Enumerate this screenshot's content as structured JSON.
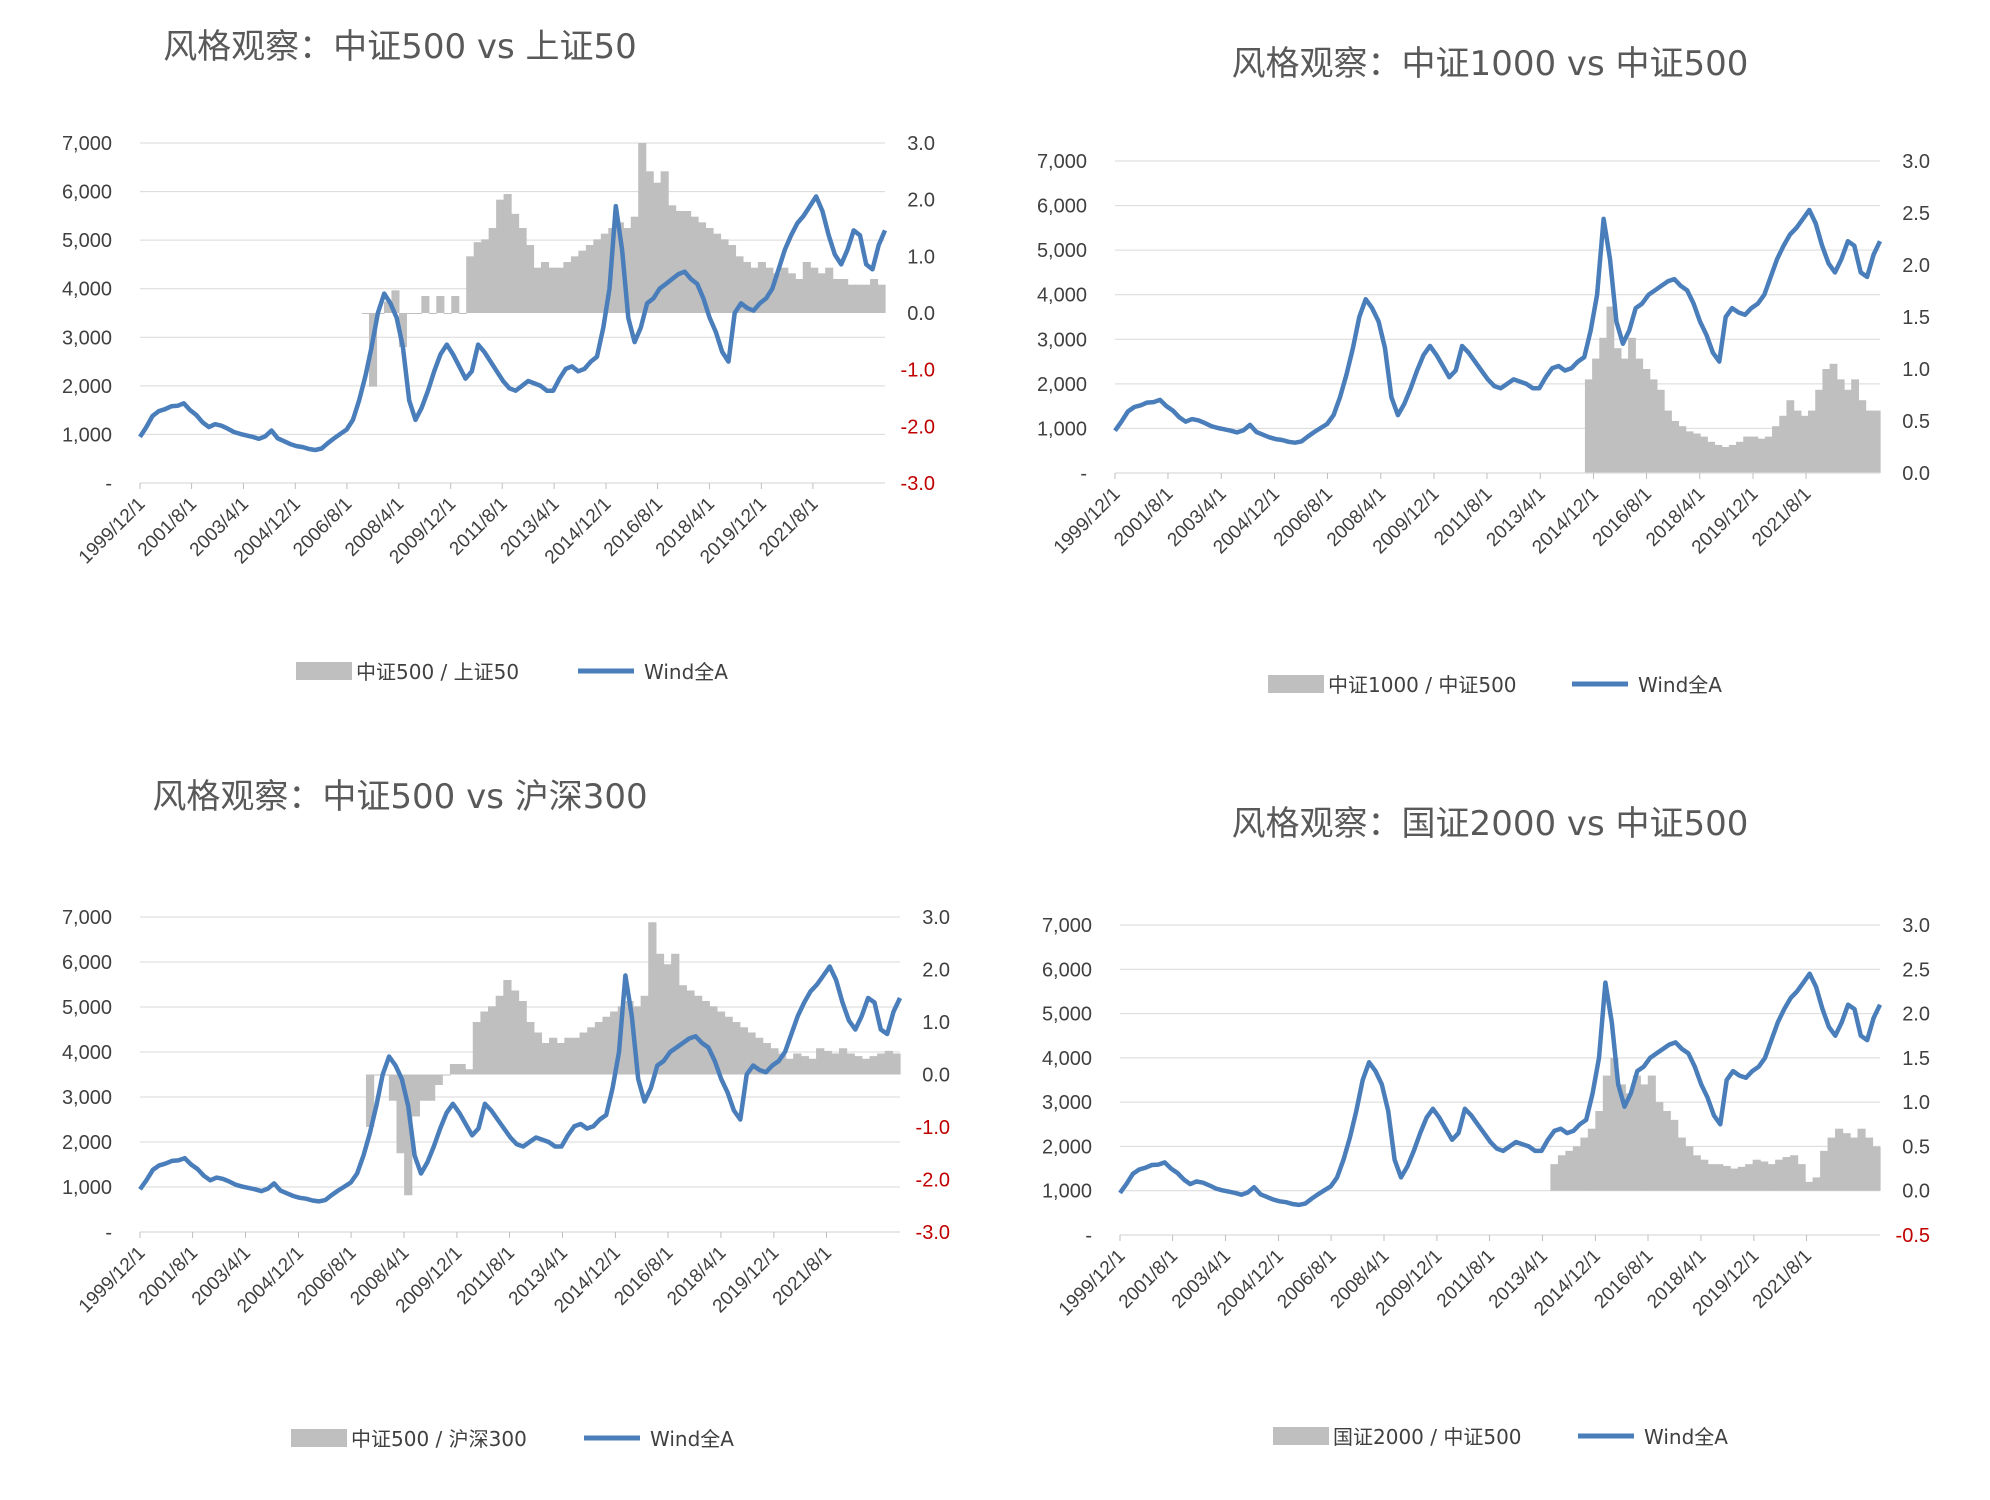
{
  "colors": {
    "line": "#4a7ebb",
    "bar": "#bfbfbf",
    "grid": "#d9d9d9",
    "negative_tick": "#c00000",
    "text": "#404040"
  },
  "chart_data": [
    {
      "type": "bar+line",
      "title": "风格观察：中证500 vs 上证50",
      "x_tick_labels": [
        "1999/12/1",
        "2001/8/1",
        "2003/4/1",
        "2004/12/1",
        "2006/8/1",
        "2008/4/1",
        "2009/12/1",
        "2011/8/1",
        "2013/4/1",
        "2014/12/1",
        "2016/8/1",
        "2018/4/1",
        "2019/12/1",
        "2021/8/1"
      ],
      "y_left": {
        "ticks": [
          "7,000",
          "6,000",
          "5,000",
          "4,000",
          "3,000",
          "2,000",
          "1,000",
          "-"
        ],
        "range": [
          0,
          7000
        ]
      },
      "y_right": {
        "ticks": [
          "3.0",
          "2.0",
          "1.0",
          "0.0",
          "-1.0",
          "-2.0",
          "-3.0"
        ],
        "range": [
          -3,
          3
        ],
        "negative_red": true
      },
      "legend": {
        "bar": "中证500 / 上证50",
        "line": "Wind全A"
      },
      "bar_series": {
        "name": "中证500 / 上证50",
        "start": 2007.05,
        "end": 2023.9,
        "values": [
          0.0,
          -1.3,
          0.0,
          0.2,
          0.4,
          -0.6,
          0.0,
          0.0,
          0.3,
          0.0,
          0.3,
          0.0,
          0.3,
          0.0,
          1.0,
          1.25,
          1.3,
          1.5,
          2.0,
          2.1,
          1.75,
          1.5,
          1.2,
          0.8,
          0.9,
          0.8,
          0.8,
          0.9,
          1.0,
          1.1,
          1.2,
          1.3,
          1.4,
          1.5,
          1.6,
          1.5,
          1.7,
          3.0,
          2.5,
          2.3,
          2.5,
          1.9,
          1.8,
          1.8,
          1.7,
          1.6,
          1.5,
          1.4,
          1.3,
          1.2,
          1.0,
          0.9,
          0.8,
          0.9,
          0.8,
          0.7,
          0.8,
          0.7,
          0.6,
          0.9,
          0.8,
          0.7,
          0.8,
          0.6,
          0.6,
          0.5,
          0.5,
          0.5,
          0.6,
          0.5
        ]
      },
      "line_series": {
        "name": "Wind全A",
        "start": 1999.92,
        "end": 2023.9,
        "values": [
          950,
          1150,
          1380,
          1480,
          1520,
          1580,
          1590,
          1640,
          1500,
          1400,
          1250,
          1150,
          1210,
          1180,
          1120,
          1050,
          1010,
          980,
          950,
          910,
          960,
          1080,
          920,
          860,
          800,
          760,
          740,
          700,
          680,
          710,
          820,
          920,
          1010,
          1100,
          1300,
          1700,
          2200,
          2800,
          3500,
          3900,
          3700,
          3400,
          2800,
          1700,
          1300,
          1550,
          1900,
          2300,
          2650,
          2850,
          2650,
          2400,
          2150,
          2300,
          2850,
          2700,
          2500,
          2300,
          2100,
          1950,
          1900,
          2000,
          2100,
          2050,
          2000,
          1900,
          1900,
          2150,
          2350,
          2400,
          2300,
          2350,
          2500,
          2600,
          3200,
          4000,
          5700,
          4800,
          3400,
          2900,
          3200,
          3700,
          3800,
          4000,
          4100,
          4200,
          4300,
          4350,
          4200,
          4100,
          3800,
          3400,
          3100,
          2700,
          2500,
          3500,
          3700,
          3600,
          3550,
          3700,
          3800,
          4000,
          4400,
          4800,
          5100,
          5350,
          5500,
          5700,
          5900,
          5600,
          5100,
          4700,
          4500,
          4800,
          5200,
          5100,
          4500,
          4400,
          4900,
          5200
        ]
      }
    },
    {
      "type": "bar+line",
      "title": "风格观察：中证1000 vs 中证500",
      "x_tick_labels": [
        "1999/12/1",
        "2001/8/1",
        "2003/4/1",
        "2004/12/1",
        "2006/8/1",
        "2008/4/1",
        "2009/12/1",
        "2011/8/1",
        "2013/4/1",
        "2014/12/1",
        "2016/8/1",
        "2018/4/1",
        "2019/12/1",
        "2021/8/1"
      ],
      "y_left": {
        "ticks": [
          "7,000",
          "6,000",
          "5,000",
          "4,000",
          "3,000",
          "2,000",
          "1,000",
          "-"
        ],
        "range": [
          0,
          7000
        ]
      },
      "y_right": {
        "ticks": [
          "3.0",
          "2.5",
          "2.0",
          "1.5",
          "1.0",
          "0.5",
          "0.0"
        ],
        "range": [
          0,
          3
        ],
        "negative_red": false
      },
      "legend": {
        "bar": "中证1000 / 中证500",
        "line": "Wind全A"
      },
      "bar_series": {
        "name": "中证1000 / 中证500",
        "start": 2014.65,
        "end": 2023.9,
        "values": [
          0.9,
          1.1,
          1.3,
          1.6,
          1.2,
          1.1,
          1.3,
          1.1,
          1.0,
          0.9,
          0.8,
          0.6,
          0.5,
          0.45,
          0.4,
          0.38,
          0.35,
          0.3,
          0.27,
          0.25,
          0.27,
          0.3,
          0.35,
          0.35,
          0.33,
          0.35,
          0.45,
          0.55,
          0.7,
          0.6,
          0.55,
          0.6,
          0.8,
          1.0,
          1.05,
          0.9,
          0.8,
          0.9,
          0.7,
          0.6,
          0.6
        ]
      },
      "line_series": {
        "name": "Wind全A",
        "start": 1999.92,
        "end": 2023.9,
        "values": [
          950,
          1150,
          1380,
          1480,
          1520,
          1580,
          1590,
          1640,
          1500,
          1400,
          1250,
          1150,
          1210,
          1180,
          1120,
          1050,
          1010,
          980,
          950,
          910,
          960,
          1080,
          920,
          860,
          800,
          760,
          740,
          700,
          680,
          710,
          820,
          920,
          1010,
          1100,
          1300,
          1700,
          2200,
          2800,
          3500,
          3900,
          3700,
          3400,
          2800,
          1700,
          1300,
          1550,
          1900,
          2300,
          2650,
          2850,
          2650,
          2400,
          2150,
          2300,
          2850,
          2700,
          2500,
          2300,
          2100,
          1950,
          1900,
          2000,
          2100,
          2050,
          2000,
          1900,
          1900,
          2150,
          2350,
          2400,
          2300,
          2350,
          2500,
          2600,
          3200,
          4000,
          5700,
          4800,
          3400,
          2900,
          3200,
          3700,
          3800,
          4000,
          4100,
          4200,
          4300,
          4350,
          4200,
          4100,
          3800,
          3400,
          3100,
          2700,
          2500,
          3500,
          3700,
          3600,
          3550,
          3700,
          3800,
          4000,
          4400,
          4800,
          5100,
          5350,
          5500,
          5700,
          5900,
          5600,
          5100,
          4700,
          4500,
          4800,
          5200,
          5100,
          4500,
          4400,
          4900,
          5200
        ]
      }
    },
    {
      "type": "bar+line",
      "title": "风格观察：中证500 vs 沪深300",
      "x_tick_labels": [
        "1999/12/1",
        "2001/8/1",
        "2003/4/1",
        "2004/12/1",
        "2006/8/1",
        "2008/4/1",
        "2009/12/1",
        "2011/8/1",
        "2013/4/1",
        "2014/12/1",
        "2016/8/1",
        "2018/4/1",
        "2019/12/1",
        "2021/8/1"
      ],
      "y_left": {
        "ticks": [
          "7,000",
          "6,000",
          "5,000",
          "4,000",
          "3,000",
          "2,000",
          "1,000",
          "-"
        ],
        "range": [
          0,
          7000
        ]
      },
      "y_right": {
        "ticks": [
          "3.0",
          "2.0",
          "1.0",
          "0.0",
          "-1.0",
          "-2.0",
          "-3.0"
        ],
        "range": [
          -3,
          3
        ],
        "negative_red": true
      },
      "legend": {
        "bar": "中证500 / 沪深300",
        "line": "Wind全A"
      },
      "bar_series": {
        "name": "中证500 / 沪深300",
        "start": 2007.05,
        "end": 2023.9,
        "values": [
          -1.0,
          0.0,
          0.0,
          -0.5,
          -1.5,
          -2.3,
          -0.8,
          -0.5,
          -0.5,
          -0.2,
          0.0,
          0.2,
          0.2,
          0.1,
          1.0,
          1.2,
          1.3,
          1.5,
          1.8,
          1.6,
          1.4,
          1.0,
          0.8,
          0.6,
          0.7,
          0.6,
          0.7,
          0.7,
          0.8,
          0.9,
          1.0,
          1.1,
          1.2,
          1.3,
          1.4,
          1.3,
          1.5,
          2.9,
          2.3,
          2.1,
          2.3,
          1.7,
          1.6,
          1.5,
          1.4,
          1.3,
          1.2,
          1.1,
          1.0,
          0.9,
          0.8,
          0.7,
          0.6,
          0.5,
          0.4,
          0.3,
          0.4,
          0.35,
          0.3,
          0.5,
          0.45,
          0.4,
          0.5,
          0.4,
          0.35,
          0.3,
          0.35,
          0.4,
          0.45,
          0.4
        ]
      },
      "line_series": {
        "name": "Wind全A",
        "start": 1999.92,
        "end": 2023.9,
        "values": [
          950,
          1150,
          1380,
          1480,
          1520,
          1580,
          1590,
          1640,
          1500,
          1400,
          1250,
          1150,
          1210,
          1180,
          1120,
          1050,
          1010,
          980,
          950,
          910,
          960,
          1080,
          920,
          860,
          800,
          760,
          740,
          700,
          680,
          710,
          820,
          920,
          1010,
          1100,
          1300,
          1700,
          2200,
          2800,
          3500,
          3900,
          3700,
          3400,
          2800,
          1700,
          1300,
          1550,
          1900,
          2300,
          2650,
          2850,
          2650,
          2400,
          2150,
          2300,
          2850,
          2700,
          2500,
          2300,
          2100,
          1950,
          1900,
          2000,
          2100,
          2050,
          2000,
          1900,
          1900,
          2150,
          2350,
          2400,
          2300,
          2350,
          2500,
          2600,
          3200,
          4000,
          5700,
          4800,
          3400,
          2900,
          3200,
          3700,
          3800,
          4000,
          4100,
          4200,
          4300,
          4350,
          4200,
          4100,
          3800,
          3400,
          3100,
          2700,
          2500,
          3500,
          3700,
          3600,
          3550,
          3700,
          3800,
          4000,
          4400,
          4800,
          5100,
          5350,
          5500,
          5700,
          5900,
          5600,
          5100,
          4700,
          4500,
          4800,
          5200,
          5100,
          4500,
          4400,
          4900,
          5200
        ]
      }
    },
    {
      "type": "bar+line",
      "title": "风格观察：国证2000 vs 中证500",
      "x_tick_labels": [
        "1999/12/1",
        "2001/8/1",
        "2003/4/1",
        "2004/12/1",
        "2006/8/1",
        "2008/4/1",
        "2009/12/1",
        "2011/8/1",
        "2013/4/1",
        "2014/12/1",
        "2016/8/1",
        "2018/4/1",
        "2019/12/1",
        "2021/8/1"
      ],
      "y_left": {
        "ticks": [
          "7,000",
          "6,000",
          "5,000",
          "4,000",
          "3,000",
          "2,000",
          "1,000",
          "-"
        ],
        "range": [
          0,
          7000
        ]
      },
      "y_right": {
        "ticks": [
          "3.0",
          "2.5",
          "2.0",
          "1.5",
          "1.0",
          "0.5",
          "0.0",
          "-0.5"
        ],
        "range": [
          -0.5,
          3
        ],
        "negative_red": true
      },
      "legend": {
        "bar": "国证2000 / 中证500",
        "line": "Wind全A"
      },
      "bar_series": {
        "name": "国证2000 / 中证500",
        "start": 2013.5,
        "end": 2023.9,
        "values": [
          0.3,
          0.4,
          0.45,
          0.5,
          0.6,
          0.7,
          0.9,
          1.3,
          1.5,
          1.2,
          1.1,
          1.3,
          1.2,
          1.3,
          1.0,
          0.9,
          0.8,
          0.6,
          0.5,
          0.4,
          0.35,
          0.3,
          0.3,
          0.28,
          0.25,
          0.27,
          0.3,
          0.35,
          0.33,
          0.3,
          0.35,
          0.38,
          0.4,
          0.3,
          0.1,
          0.15,
          0.45,
          0.6,
          0.7,
          0.65,
          0.6,
          0.7,
          0.6,
          0.5
        ]
      },
      "line_series": {
        "name": "Wind全A",
        "start": 1999.92,
        "end": 2023.9,
        "values": [
          950,
          1150,
          1380,
          1480,
          1520,
          1580,
          1590,
          1640,
          1500,
          1400,
          1250,
          1150,
          1210,
          1180,
          1120,
          1050,
          1010,
          980,
          950,
          910,
          960,
          1080,
          920,
          860,
          800,
          760,
          740,
          700,
          680,
          710,
          820,
          920,
          1010,
          1100,
          1300,
          1700,
          2200,
          2800,
          3500,
          3900,
          3700,
          3400,
          2800,
          1700,
          1300,
          1550,
          1900,
          2300,
          2650,
          2850,
          2650,
          2400,
          2150,
          2300,
          2850,
          2700,
          2500,
          2300,
          2100,
          1950,
          1900,
          2000,
          2100,
          2050,
          2000,
          1900,
          1900,
          2150,
          2350,
          2400,
          2300,
          2350,
          2500,
          2600,
          3200,
          4000,
          5700,
          4800,
          3400,
          2900,
          3200,
          3700,
          3800,
          4000,
          4100,
          4200,
          4300,
          4350,
          4200,
          4100,
          3800,
          3400,
          3100,
          2700,
          2500,
          3500,
          3700,
          3600,
          3550,
          3700,
          3800,
          4000,
          4400,
          4800,
          5100,
          5350,
          5500,
          5700,
          5900,
          5600,
          5100,
          4700,
          4500,
          4800,
          5200,
          5100,
          4500,
          4400,
          4900,
          5200
        ]
      }
    }
  ]
}
